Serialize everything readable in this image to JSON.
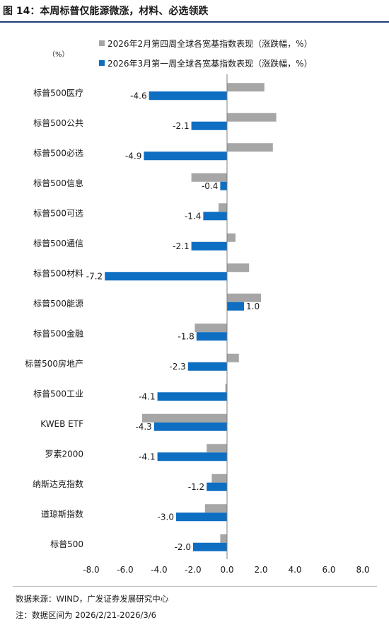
{
  "header": {
    "title": "图 14：本周标普仅能源微涨，材料、必选领跌"
  },
  "footer": {
    "source": "数据来源：WIND，广发证券发展研究中心",
    "note": "注：数据区间为 2026/2/21-2026/3/6"
  },
  "chart_data": {
    "type": "bar",
    "orientation": "horizontal",
    "unit_label": "（%）",
    "categories": [
      "标普500医疗",
      "标普500公共",
      "标普500必选",
      "标普500信息",
      "标普500可选",
      "标普500通信",
      "标普500材料",
      "标普500能源",
      "标普500金融",
      "标普500房地产",
      "标普500工业",
      "KWEB ETF",
      "罗素2000",
      "纳斯达克指数",
      "道琼斯指数",
      "标普500"
    ],
    "series": [
      {
        "name": "2026年2月第四周全球各宽基指数表现（涨跌幅，%）",
        "color": "#a6a6a6",
        "values": [
          2.2,
          2.9,
          2.7,
          -2.1,
          -0.5,
          0.5,
          1.3,
          2.0,
          -1.9,
          0.7,
          -0.1,
          -5.0,
          -1.2,
          -0.9,
          -1.3,
          -0.4
        ],
        "labels_shown": false
      },
      {
        "name": "2026年3月第一周全球各宽基指数表现（涨跌幅，%）",
        "color": "#0e6ec2",
        "values": [
          -4.6,
          -2.1,
          -4.9,
          -0.4,
          -1.4,
          -2.1,
          -7.2,
          1.0,
          -1.8,
          -2.3,
          -4.1,
          -4.3,
          -4.1,
          -1.2,
          -3.0,
          -2.0
        ],
        "labels_shown": true
      }
    ],
    "xlim": [
      -8.0,
      8.0
    ],
    "xticks": [
      "-8.0",
      "-6.0",
      "-4.0",
      "-2.0",
      "0.0",
      "2.0",
      "4.0",
      "6.0",
      "8.0"
    ],
    "grid": false,
    "legend_position": "top"
  }
}
